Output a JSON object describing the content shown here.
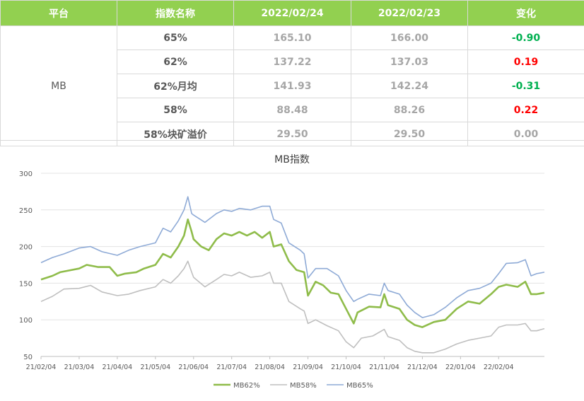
{
  "table": {
    "headers": [
      "平台",
      "指数名称",
      "2022/02/24",
      "2022/02/23",
      "变化"
    ],
    "platform": "MB",
    "rows": [
      {
        "name": "65%",
        "v1": "165.10",
        "v2": "166.00",
        "change": "-0.90",
        "change_color": "#00b050"
      },
      {
        "name": "62%",
        "v1": "137.22",
        "v2": "137.03",
        "change": "0.19",
        "change_color": "#ff0000"
      },
      {
        "name": "62%月均",
        "v1": "141.93",
        "v2": "142.24",
        "change": "-0.31",
        "change_color": "#00b050"
      },
      {
        "name": "58%",
        "v1": "88.48",
        "v2": "88.26",
        "change": "0.22",
        "change_color": "#ff0000"
      },
      {
        "name": "58%块矿溢价",
        "v1": "29.50",
        "v2": "29.50",
        "change": "0.00",
        "change_color": "#a6a6a6"
      }
    ]
  },
  "chart_data": {
    "type": "line",
    "title": "MB指数",
    "xlabel": "",
    "ylabel": "",
    "ylim": [
      50,
      300
    ],
    "yticks": [
      50,
      100,
      150,
      200,
      250,
      300
    ],
    "x_ticks": [
      "21/02/04",
      "21/03/04",
      "21/04/04",
      "21/05/04",
      "21/06/04",
      "21/07/04",
      "21/08/04",
      "21/09/04",
      "21/10/04",
      "21/11/04",
      "21/12/04",
      "22/01/04",
      "22/02/04"
    ],
    "grid": "horizontal",
    "legend_position": "bottom",
    "series": [
      {
        "name": "MB62%",
        "color": "#8fbc4a",
        "width": 2.6,
        "values": [
          [
            0,
            155
          ],
          [
            0.3,
            160
          ],
          [
            0.5,
            165
          ],
          [
            1,
            170
          ],
          [
            1.2,
            175
          ],
          [
            1.5,
            172
          ],
          [
            1.8,
            172
          ],
          [
            2,
            160
          ],
          [
            2.2,
            163
          ],
          [
            2.5,
            165
          ],
          [
            2.7,
            170
          ],
          [
            3,
            175
          ],
          [
            3.2,
            190
          ],
          [
            3.4,
            185
          ],
          [
            3.6,
            200
          ],
          [
            3.75,
            215
          ],
          [
            3.85,
            237
          ],
          [
            3.95,
            220
          ],
          [
            4,
            210
          ],
          [
            4.2,
            200
          ],
          [
            4.4,
            195
          ],
          [
            4.6,
            210
          ],
          [
            4.8,
            218
          ],
          [
            5,
            215
          ],
          [
            5.2,
            220
          ],
          [
            5.4,
            215
          ],
          [
            5.6,
            220
          ],
          [
            5.8,
            212
          ],
          [
            6,
            220
          ],
          [
            6.1,
            200
          ],
          [
            6.3,
            203
          ],
          [
            6.5,
            180
          ],
          [
            6.7,
            168
          ],
          [
            6.9,
            165
          ],
          [
            7,
            133
          ],
          [
            7.2,
            152
          ],
          [
            7.4,
            147
          ],
          [
            7.6,
            137
          ],
          [
            7.8,
            135
          ],
          [
            8,
            115
          ],
          [
            8.2,
            95
          ],
          [
            8.3,
            110
          ],
          [
            8.6,
            118
          ],
          [
            8.9,
            117
          ],
          [
            9,
            135
          ],
          [
            9.1,
            120
          ],
          [
            9.4,
            115
          ],
          [
            9.6,
            100
          ],
          [
            9.8,
            93
          ],
          [
            10,
            90
          ],
          [
            10.3,
            97
          ],
          [
            10.6,
            100
          ],
          [
            10.9,
            115
          ],
          [
            11.2,
            125
          ],
          [
            11.5,
            122
          ],
          [
            11.8,
            135
          ],
          [
            12,
            145
          ],
          [
            12.2,
            148
          ],
          [
            12.5,
            145
          ],
          [
            12.7,
            152
          ],
          [
            12.85,
            135
          ],
          [
            13,
            135
          ],
          [
            13.2,
            137
          ]
        ]
      },
      {
        "name": "MB58%",
        "color": "#bfbfbf",
        "width": 1.6,
        "values": [
          [
            0,
            125
          ],
          [
            0.3,
            132
          ],
          [
            0.6,
            142
          ],
          [
            1,
            143
          ],
          [
            1.3,
            147
          ],
          [
            1.6,
            138
          ],
          [
            2,
            133
          ],
          [
            2.3,
            135
          ],
          [
            2.6,
            140
          ],
          [
            3,
            145
          ],
          [
            3.2,
            155
          ],
          [
            3.4,
            150
          ],
          [
            3.6,
            160
          ],
          [
            3.75,
            170
          ],
          [
            3.85,
            180
          ],
          [
            3.95,
            165
          ],
          [
            4,
            158
          ],
          [
            4.3,
            145
          ],
          [
            4.6,
            155
          ],
          [
            4.8,
            162
          ],
          [
            5,
            160
          ],
          [
            5.2,
            165
          ],
          [
            5.5,
            158
          ],
          [
            5.8,
            160
          ],
          [
            6,
            165
          ],
          [
            6.1,
            150
          ],
          [
            6.3,
            150
          ],
          [
            6.5,
            125
          ],
          [
            6.8,
            115
          ],
          [
            6.9,
            112
          ],
          [
            7,
            95
          ],
          [
            7.2,
            100
          ],
          [
            7.5,
            92
          ],
          [
            7.8,
            85
          ],
          [
            8,
            70
          ],
          [
            8.2,
            62
          ],
          [
            8.4,
            75
          ],
          [
            8.7,
            78
          ],
          [
            9,
            87
          ],
          [
            9.1,
            77
          ],
          [
            9.4,
            72
          ],
          [
            9.6,
            62
          ],
          [
            9.8,
            57
          ],
          [
            10,
            55
          ],
          [
            10.3,
            55
          ],
          [
            10.6,
            60
          ],
          [
            10.9,
            67
          ],
          [
            11.2,
            72
          ],
          [
            11.5,
            75
          ],
          [
            11.8,
            78
          ],
          [
            12,
            90
          ],
          [
            12.2,
            93
          ],
          [
            12.5,
            93
          ],
          [
            12.7,
            95
          ],
          [
            12.85,
            85
          ],
          [
            13,
            85
          ],
          [
            13.2,
            88
          ]
        ]
      },
      {
        "name": "MB65%",
        "color": "#8eaad6",
        "width": 1.6,
        "values": [
          [
            0,
            178
          ],
          [
            0.3,
            185
          ],
          [
            0.6,
            190
          ],
          [
            1,
            198
          ],
          [
            1.3,
            200
          ],
          [
            1.6,
            193
          ],
          [
            2,
            188
          ],
          [
            2.3,
            195
          ],
          [
            2.6,
            200
          ],
          [
            3,
            205
          ],
          [
            3.2,
            225
          ],
          [
            3.4,
            220
          ],
          [
            3.6,
            235
          ],
          [
            3.75,
            250
          ],
          [
            3.85,
            268
          ],
          [
            3.95,
            245
          ],
          [
            4,
            243
          ],
          [
            4.3,
            233
          ],
          [
            4.6,
            245
          ],
          [
            4.8,
            250
          ],
          [
            5,
            248
          ],
          [
            5.2,
            252
          ],
          [
            5.5,
            250
          ],
          [
            5.8,
            255
          ],
          [
            6,
            255
          ],
          [
            6.1,
            237
          ],
          [
            6.3,
            232
          ],
          [
            6.5,
            205
          ],
          [
            6.8,
            195
          ],
          [
            6.9,
            190
          ],
          [
            7,
            157
          ],
          [
            7.2,
            170
          ],
          [
            7.5,
            170
          ],
          [
            7.8,
            160
          ],
          [
            8,
            140
          ],
          [
            8.2,
            125
          ],
          [
            8.3,
            128
          ],
          [
            8.6,
            135
          ],
          [
            8.9,
            133
          ],
          [
            9,
            150
          ],
          [
            9.1,
            140
          ],
          [
            9.4,
            135
          ],
          [
            9.6,
            120
          ],
          [
            9.8,
            110
          ],
          [
            10,
            103
          ],
          [
            10.3,
            107
          ],
          [
            10.6,
            117
          ],
          [
            10.9,
            130
          ],
          [
            11.2,
            140
          ],
          [
            11.5,
            143
          ],
          [
            11.8,
            150
          ],
          [
            12,
            163
          ],
          [
            12.2,
            177
          ],
          [
            12.5,
            178
          ],
          [
            12.7,
            182
          ],
          [
            12.85,
            160
          ],
          [
            13,
            163
          ],
          [
            13.2,
            165
          ]
        ]
      }
    ]
  }
}
